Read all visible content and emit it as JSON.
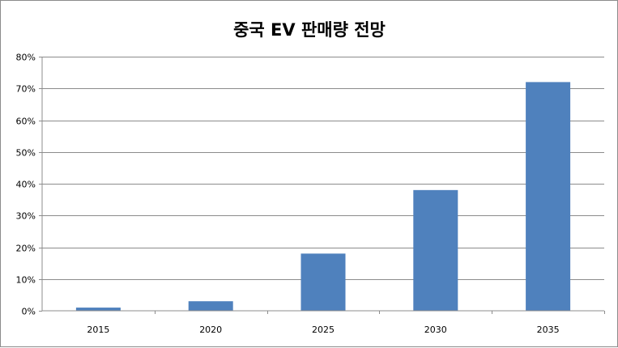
{
  "chart_data": {
    "type": "bar",
    "title": "중국 EV 판매량 전망",
    "categories": [
      "2015",
      "2020",
      "2025",
      "2030",
      "2035"
    ],
    "values": [
      1,
      3,
      18,
      38,
      72
    ],
    "ylim": [
      0,
      80
    ],
    "yticks": [
      "0%",
      "10%",
      "20%",
      "30%",
      "40%",
      "50%",
      "60%",
      "70%",
      "80%"
    ],
    "xlabel": "",
    "ylabel": "",
    "grid": true,
    "legend": "none",
    "bar_color": "#4f81bd",
    "grid_color": "#8c8c8c"
  }
}
